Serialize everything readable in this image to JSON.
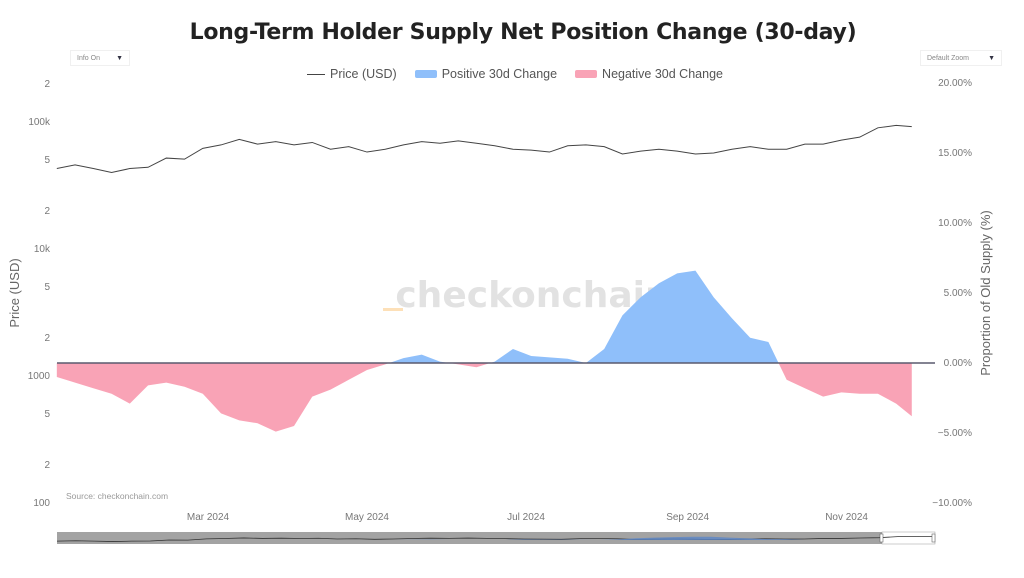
{
  "title": "Long-Term Holder Supply Net Position Change (30-day)",
  "controls": {
    "info_label": "Info On",
    "zoom_label": "Default Zoom",
    "arrow_icon": "triangle-down-icon"
  },
  "legend": {
    "price": "Price (USD)",
    "positive": "Positive 30d Change",
    "negative": "Negative 30d Change"
  },
  "watermark": "checkonchain",
  "source": "Source: checkonchain.com",
  "colors": {
    "price": "#444444",
    "positive": "#8fbffa",
    "negative": "#f9a3b6",
    "zero_line": "#5a5a6e"
  },
  "chart_data": {
    "type": "area",
    "title": "Long-Term Holder Supply Net Position Change (30-day)",
    "x_ticks": [
      "Mar 2024",
      "May 2024",
      "Jul 2024",
      "Sep 2024",
      "Nov 2024"
    ],
    "y_left": {
      "label": "Price (USD)",
      "scale": "log",
      "range": [
        100,
        200000
      ],
      "tick_labels": [
        {
          "v": 200000,
          "t": "2"
        },
        {
          "v": 100000,
          "t": "100k"
        },
        {
          "v": 50000,
          "t": "5"
        },
        {
          "v": 20000,
          "t": "2"
        },
        {
          "v": 10000,
          "t": "10k"
        },
        {
          "v": 5000,
          "t": "5"
        },
        {
          "v": 2000,
          "t": "2"
        },
        {
          "v": 1000,
          "t": "1000"
        },
        {
          "v": 500,
          "t": "5"
        },
        {
          "v": 200,
          "t": "2"
        },
        {
          "v": 100,
          "t": "100"
        }
      ]
    },
    "y_right": {
      "label": "Proportion of Old Supply (%)",
      "range": [
        -10,
        20
      ],
      "tick_labels": [
        {
          "v": 20,
          "t": "20.00%"
        },
        {
          "v": 15,
          "t": "15.00%"
        },
        {
          "v": 10,
          "t": "10.00%"
        },
        {
          "v": 5,
          "t": "5.00%"
        },
        {
          "v": 0,
          "t": "0.00%"
        },
        {
          "v": -5,
          "t": "−5.00%"
        },
        {
          "v": -10,
          "t": "−10.00%"
        }
      ]
    },
    "dates": [
      "2024-01-03",
      "2024-01-10",
      "2024-01-17",
      "2024-01-24",
      "2024-01-31",
      "2024-02-07",
      "2024-02-14",
      "2024-02-21",
      "2024-02-28",
      "2024-03-06",
      "2024-03-13",
      "2024-03-20",
      "2024-03-27",
      "2024-04-03",
      "2024-04-10",
      "2024-04-17",
      "2024-04-24",
      "2024-05-01",
      "2024-05-08",
      "2024-05-15",
      "2024-05-22",
      "2024-05-29",
      "2024-06-05",
      "2024-06-12",
      "2024-06-19",
      "2024-06-26",
      "2024-07-03",
      "2024-07-10",
      "2024-07-17",
      "2024-07-24",
      "2024-07-31",
      "2024-08-07",
      "2024-08-14",
      "2024-08-21",
      "2024-08-28",
      "2024-09-04",
      "2024-09-11",
      "2024-09-18",
      "2024-09-25",
      "2024-10-02",
      "2024-10-09",
      "2024-10-16",
      "2024-10-23",
      "2024-10-30",
      "2024-11-06",
      "2024-11-13",
      "2024-11-20",
      "2024-11-26"
    ],
    "series": [
      {
        "name": "Price (USD)",
        "axis": "left",
        "values": [
          43000,
          46000,
          43000,
          40000,
          43000,
          44000,
          52000,
          51000,
          62000,
          66000,
          73000,
          67000,
          70000,
          66000,
          69000,
          61000,
          64000,
          58000,
          61000,
          66000,
          70000,
          68000,
          71000,
          68000,
          65000,
          61000,
          60000,
          58000,
          65000,
          66000,
          64000,
          56000,
          59000,
          61000,
          59000,
          56000,
          57000,
          61000,
          64000,
          61000,
          61000,
          67000,
          67000,
          72000,
          76000,
          90000,
          94000,
          92000
        ]
      },
      {
        "name": "30d Change",
        "axis": "right",
        "values": [
          -1.0,
          -1.4,
          -1.8,
          -2.2,
          -2.9,
          -1.6,
          -1.4,
          -1.7,
          -2.2,
          -3.6,
          -4.1,
          -4.3,
          -4.9,
          -4.5,
          -2.4,
          -1.9,
          -1.2,
          -0.5,
          -0.1,
          0.35,
          0.6,
          0.1,
          -0.1,
          -0.3,
          0.1,
          1.0,
          0.5,
          0.4,
          0.3,
          0.0,
          1.0,
          3.4,
          4.7,
          5.7,
          6.4,
          6.6,
          4.7,
          3.2,
          1.8,
          1.5,
          -1.2,
          -1.8,
          -2.4,
          -2.1,
          -2.2,
          -2.2,
          -2.9,
          -3.8
        ]
      }
    ],
    "grid": false,
    "legend_position": "top"
  }
}
